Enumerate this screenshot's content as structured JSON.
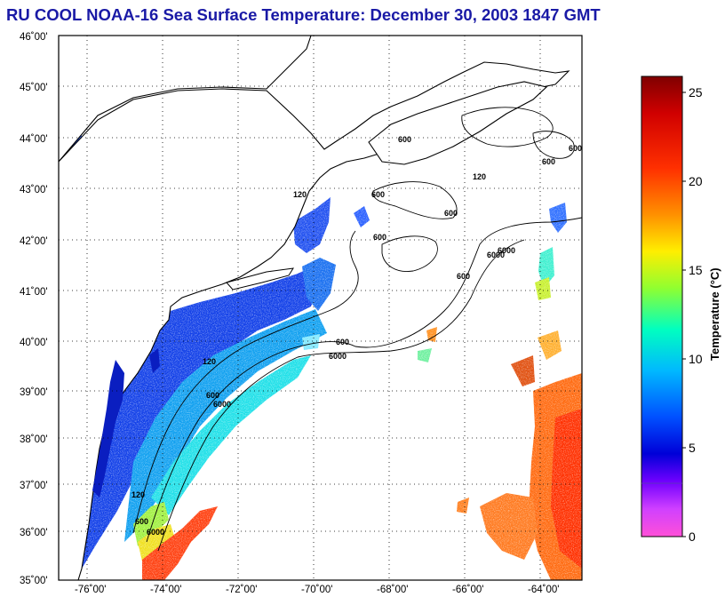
{
  "title": "RU COOL  NOAA-16  Sea Surface Temperature:  December 30, 2003 1847 GMT",
  "map": {
    "lon_range": [
      -77,
      -63
    ],
    "lat_range": [
      35,
      46
    ],
    "lon_ticks": [
      "-76˚00'",
      "-74˚00'",
      "-72˚00'",
      "-70˚00'",
      "-68˚00'",
      "-66˚00'",
      "-64˚00'"
    ],
    "lat_ticks": [
      "46˚00'",
      "45˚00'",
      "44˚00'",
      "43˚00'",
      "42˚00'",
      "41˚00'",
      "40˚00'",
      "39˚00'",
      "38˚00'",
      "37˚00'",
      "36˚00'",
      "35˚00'"
    ],
    "contour_labels": [
      "120",
      "600",
      "6000",
      "120",
      "600",
      "6000",
      "600",
      "600",
      "600",
      "6000",
      "6000",
      "600",
      "120",
      "600",
      "600",
      "120",
      "600",
      "6000",
      "600"
    ],
    "grid": "dotted",
    "land_color": "#ffffff",
    "cloud_color": "#ffffff"
  },
  "colorbar": {
    "label": "Temperature (°C)",
    "min": 0,
    "max": 26,
    "ticks": [
      "25",
      "20",
      "15",
      "10",
      "5",
      "0"
    ],
    "colors": [
      "#7f0000",
      "#d90000",
      "#ff4000",
      "#ffa500",
      "#ffff00",
      "#80ff40",
      "#00ffc0",
      "#00c0ff",
      "#0060ff",
      "#0000e0",
      "#6000ff",
      "#d040ff",
      "#ff40e0"
    ]
  }
}
